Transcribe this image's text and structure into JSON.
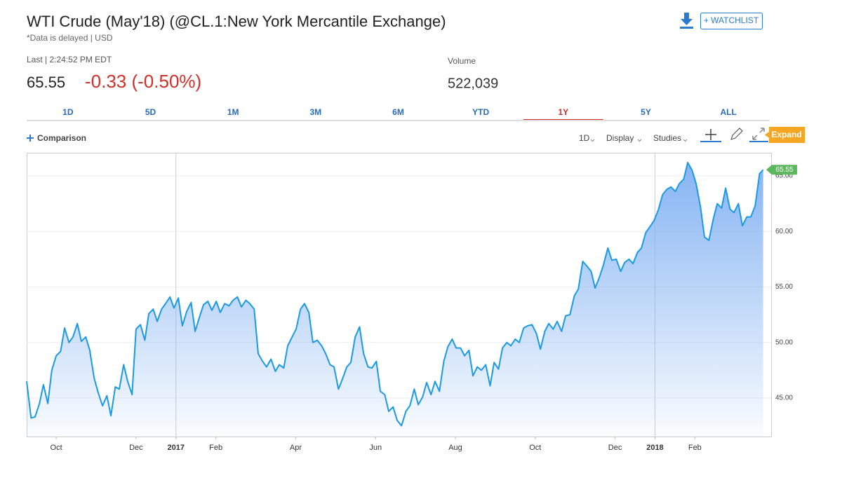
{
  "header": {
    "title": "WTI Crude (May'18) (@CL.1:New York Mercantile Exchange)",
    "subtitle": "*Data is delayed | USD",
    "last_label": "Last | 2:24:52 PM EDT",
    "last": "65.55",
    "change": "-0.33 (-0.50%)",
    "volume_label": "Volume",
    "volume": "522,039",
    "watchlist": "+ WATCHLIST"
  },
  "tabs": {
    "items": [
      "1D",
      "5D",
      "1M",
      "3M",
      "6M",
      "YTD",
      "1Y",
      "5Y",
      "ALL"
    ],
    "active": 6
  },
  "toolbar": {
    "comparison": "Comparison",
    "interval": "1D",
    "display": "Display",
    "studies": "Studies",
    "expand": "Expand"
  },
  "chart_data": {
    "type": "line",
    "color": "#1b9ae4",
    "area_color": "#7fb0f2",
    "grid": true,
    "xlim": [
      -0.74,
      17.91
    ],
    "ylim": [
      41.53,
      67.08
    ],
    "xticks": [
      {
        "value": 0,
        "label": "Oct"
      },
      {
        "value": 2,
        "label": "Dec"
      },
      {
        "value": 3,
        "label": "2017"
      },
      {
        "value": 4,
        "label": "Feb"
      },
      {
        "value": 6,
        "label": "Apr"
      },
      {
        "value": 8,
        "label": "Jun"
      },
      {
        "value": 10,
        "label": "Aug"
      },
      {
        "value": 12,
        "label": "Oct"
      },
      {
        "value": 14,
        "label": "Dec"
      },
      {
        "value": 15,
        "label": "2018"
      },
      {
        "value": 16,
        "label": "Feb"
      }
    ],
    "yticks": [
      {
        "value": 45,
        "label": "45.00"
      },
      {
        "value": 50,
        "label": "50.00"
      },
      {
        "value": 55,
        "label": "55.00"
      },
      {
        "value": 60,
        "label": "60.00"
      },
      {
        "value": 65,
        "label": "65.00"
      }
    ],
    "x": [
      -0.74,
      -0.63,
      -0.53,
      -0.42,
      -0.32,
      -0.21,
      -0.11,
      0,
      0.11,
      0.21,
      0.32,
      0.42,
      0.53,
      0.63,
      0.74,
      0.84,
      0.95,
      1.05,
      1.16,
      1.27,
      1.37,
      1.48,
      1.58,
      1.69,
      1.79,
      1.9,
      2.0,
      2.11,
      2.22,
      2.32,
      2.43,
      2.53,
      2.64,
      2.74,
      2.85,
      2.95,
      3.06,
      3.16,
      3.27,
      3.38,
      3.48,
      3.59,
      3.69,
      3.8,
      3.9,
      4.01,
      4.11,
      4.22,
      4.33,
      4.43,
      4.54,
      4.64,
      4.75,
      4.85,
      4.96,
      5.06,
      5.17,
      5.27,
      5.38,
      5.49,
      5.59,
      5.7,
      5.8,
      5.91,
      6.01,
      6.12,
      6.22,
      6.33,
      6.43,
      6.54,
      6.65,
      6.75,
      6.86,
      6.96,
      7.07,
      7.17,
      7.28,
      7.38,
      7.49,
      7.6,
      7.7,
      7.81,
      7.91,
      8.02,
      8.12,
      8.23,
      8.33,
      8.44,
      8.54,
      8.65,
      8.76,
      8.86,
      8.97,
      9.07,
      9.18,
      9.28,
      9.39,
      9.49,
      9.6,
      9.71,
      9.81,
      9.92,
      10.02,
      10.13,
      10.23,
      10.34,
      10.44,
      10.55,
      10.65,
      10.76,
      10.87,
      10.97,
      11.08,
      11.18,
      11.29,
      11.39,
      11.5,
      11.6,
      11.71,
      11.81,
      11.92,
      12.03,
      12.13,
      12.24,
      12.34,
      12.45,
      12.55,
      12.66,
      12.76,
      12.87,
      12.98,
      13.08,
      13.19,
      13.29,
      13.4,
      13.5,
      13.61,
      13.71,
      13.82,
      13.92,
      14.03,
      14.14,
      14.24,
      14.35,
      14.45,
      14.56,
      14.66,
      14.77,
      14.87,
      14.98,
      15.09,
      15.19,
      15.3,
      15.4,
      15.51,
      15.61,
      15.72,
      15.82,
      15.93,
      16.03,
      16.14,
      16.24,
      16.35,
      16.46,
      16.56,
      16.67,
      16.77,
      16.88,
      16.98,
      17.09,
      17.19,
      17.3,
      17.4,
      17.51,
      17.62,
      17.71
    ],
    "values": [
      46.5,
      43.2,
      43.3,
      44.5,
      46.2,
      44.5,
      47.5,
      48.8,
      49.2,
      51.3,
      50.0,
      50.5,
      51.7,
      50.1,
      50.5,
      49.3,
      46.8,
      45.5,
      44.3,
      45.2,
      43.4,
      46.0,
      45.8,
      48.0,
      46.5,
      45.3,
      51.2,
      51.6,
      50.2,
      52.6,
      53.0,
      51.9,
      53.0,
      53.5,
      54.1,
      53.1,
      54.0,
      51.5,
      52.8,
      53.6,
      51.0,
      52.3,
      53.4,
      53.7,
      52.9,
      53.7,
      52.7,
      53.5,
      53.3,
      53.8,
      54.1,
      53.2,
      53.8,
      53.5,
      53.0,
      49.0,
      48.3,
      47.8,
      48.5,
      47.4,
      48.0,
      47.7,
      49.7,
      50.5,
      51.2,
      53.0,
      53.5,
      52.7,
      50.0,
      50.2,
      49.7,
      49.0,
      48.0,
      47.8,
      45.8,
      46.7,
      47.8,
      48.2,
      50.5,
      51.4,
      49.0,
      47.8,
      47.7,
      48.3,
      45.6,
      45.3,
      43.8,
      44.2,
      43.0,
      42.5,
      43.8,
      44.3,
      45.8,
      44.4,
      45.1,
      46.4,
      45.3,
      46.5,
      45.6,
      48.3,
      49.6,
      50.3,
      49.5,
      49.5,
      48.8,
      49.3,
      47.0,
      47.8,
      47.5,
      48.0,
      46.1,
      48.2,
      47.6,
      49.5,
      50.0,
      49.7,
      50.3,
      50.0,
      51.3,
      51.5,
      51.6,
      50.8,
      49.4,
      51.0,
      51.7,
      51.2,
      51.9,
      51.0,
      52.4,
      52.5,
      54.2,
      54.8,
      57.3,
      56.9,
      56.4,
      54.9,
      55.9,
      57.0,
      58.5,
      57.4,
      57.5,
      56.4,
      57.2,
      57.5,
      57.1,
      58.1,
      58.5,
      59.9,
      60.4,
      61.0,
      62.0,
      63.3,
      63.8,
      64.0,
      63.6,
      64.3,
      64.7,
      66.2,
      65.5,
      64.3,
      62.2,
      59.5,
      59.2,
      61.1,
      62.5,
      62.1,
      63.9,
      62.0,
      61.7,
      62.5,
      60.5,
      61.3,
      61.3,
      62.3,
      65.2,
      65.55
    ]
  }
}
